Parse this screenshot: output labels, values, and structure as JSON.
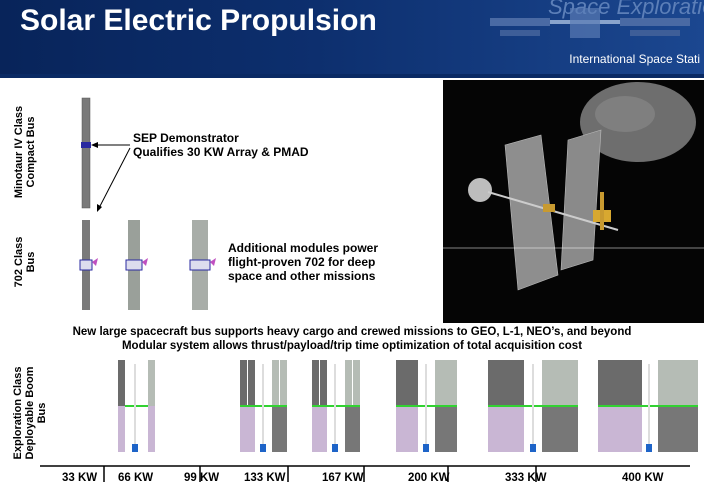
{
  "header": {
    "title": "Solar Electric Propulsion",
    "ghost_text": "Space Exploratio",
    "caption": "International Space Stati"
  },
  "labels": {
    "minotaur": "Minotaur IV Class Compact Bus",
    "bus702": "702 Class Bus",
    "exploration": "Exploration Class Deployable Boom Bus"
  },
  "notes": {
    "sep_line1": "SEP Demonstrator",
    "sep_line2": "Qualifies 30 KW Array & PMAD",
    "mod_line1": "Additional modules power",
    "mod_line2": "flight-proven 702 for deep",
    "mod_line3": "space and other missions",
    "center_line1": "New large spacecraft bus supports heavy cargo and crewed missions to GEO, L-1, NEO’s, and beyond",
    "center_line2": "Modular system allows thrust/payload/trip time optimization of total acquisition cost"
  },
  "power_levels": [
    "33 KW",
    "66 KW",
    "99 KW",
    "133 KW",
    "167 KW",
    "200 KW",
    "333 KW",
    "400 KW"
  ],
  "colors": {
    "header_bg": "#0d2f6e",
    "panel_gray": "#6b6b6b",
    "panel_light": "#b5bcb5",
    "panel_lavender": "#c9b6d4",
    "boom_green": "#32d232",
    "engine_blue": "#1e64c8"
  }
}
